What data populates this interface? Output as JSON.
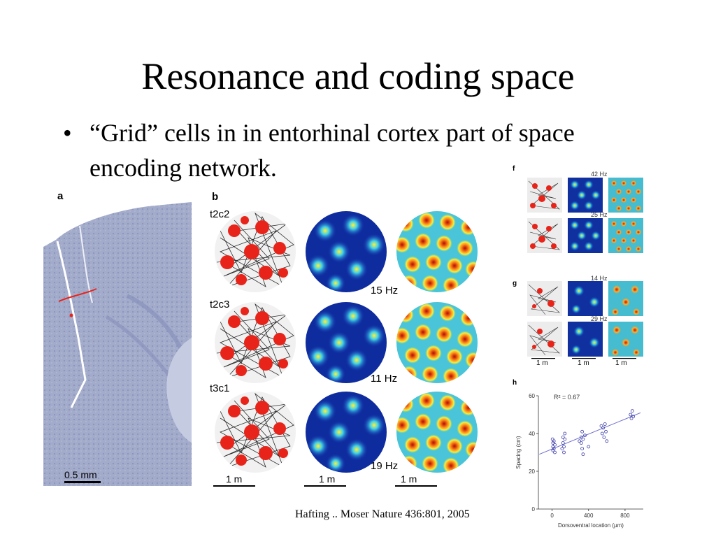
{
  "slide": {
    "title": "Resonance and coding space",
    "bullet": "“Grid” cells in in entorhinal cortex part of space encoding network.",
    "citation": "Hafting .. Moser Nature 436:801, 2005"
  },
  "panel_a": {
    "letter": "a",
    "scale_label": "0.5 mm"
  },
  "panel_b": {
    "letter": "b",
    "cells": [
      {
        "label": "t2c2",
        "peak_rate": "15 Hz"
      },
      {
        "label": "t2c3",
        "peak_rate": "11 Hz"
      },
      {
        "label": "t3c1",
        "peak_rate": "19 Hz"
      }
    ],
    "scale_labels": [
      "1 m",
      "1 m",
      "1 m"
    ]
  },
  "panel_f": {
    "letter": "f",
    "rates": [
      "42 Hz",
      "25 Hz"
    ]
  },
  "panel_g": {
    "letter": "g",
    "rates": [
      "14 Hz",
      "29 Hz"
    ],
    "scale_labels": [
      "1 m",
      "1 m",
      "1 m"
    ]
  },
  "panel_h": {
    "letter": "h",
    "r2_label": "R² = 0.67",
    "chart_data": {
      "type": "scatter",
      "title": "",
      "xlabel": "Dorsoventral location (µm)",
      "ylabel": "Spacing (cm)",
      "xlim": [
        -150,
        1000
      ],
      "ylim": [
        0,
        60
      ],
      "xticks": [
        "0",
        "400",
        "800"
      ],
      "yticks": [
        "0",
        "20",
        "40",
        "60"
      ],
      "points": [
        [
          10,
          33
        ],
        [
          10,
          35
        ],
        [
          10,
          31
        ],
        [
          20,
          36
        ],
        [
          20,
          32
        ],
        [
          30,
          34
        ],
        [
          30,
          30
        ],
        [
          5,
          37
        ],
        [
          120,
          38
        ],
        [
          120,
          35
        ],
        [
          130,
          33
        ],
        [
          130,
          30
        ],
        [
          140,
          37
        ],
        [
          140,
          40
        ],
        [
          110,
          32
        ],
        [
          320,
          38
        ],
        [
          320,
          35
        ],
        [
          330,
          41
        ],
        [
          330,
          32
        ],
        [
          340,
          37
        ],
        [
          340,
          29
        ],
        [
          360,
          39
        ],
        [
          400,
          33
        ],
        [
          300,
          36
        ],
        [
          540,
          44
        ],
        [
          550,
          40
        ],
        [
          560,
          43
        ],
        [
          570,
          38
        ],
        [
          580,
          45
        ],
        [
          590,
          41
        ],
        [
          600,
          36
        ],
        [
          860,
          50
        ],
        [
          870,
          48
        ],
        [
          880,
          52
        ],
        [
          890,
          49
        ]
      ],
      "fit_line": [
        [
          -140,
          29
        ],
        [
          970,
          51
        ]
      ],
      "grid": false,
      "legend": "none"
    }
  },
  "colors": {
    "trajectory": "#2b2b2b",
    "spikes": "#e8241a",
    "map_low": "#0a2c8c",
    "map_high": "#9a0a00",
    "tissue": "#9aa3c4",
    "fit": "#6b6bd0"
  }
}
